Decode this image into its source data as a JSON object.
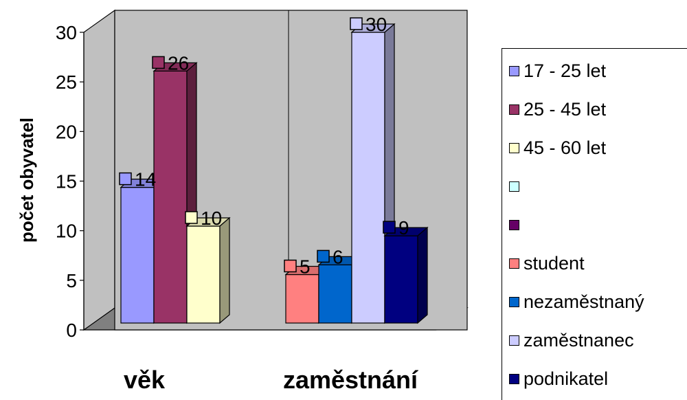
{
  "chart_data": {
    "type": "bar",
    "ylabel": "počet obyvatel",
    "ylim": [
      0,
      30
    ],
    "yticks": [
      "0",
      "5",
      "10",
      "15",
      "20",
      "25",
      "30"
    ],
    "categories": [
      "věk",
      "zaměstnání"
    ],
    "series": [
      {
        "name": "17 - 25 let",
        "color": "#9999ff",
        "category": "věk",
        "value": 14
      },
      {
        "name": "25 - 45 let",
        "color": "#993366",
        "category": "věk",
        "value": 26
      },
      {
        "name": "45 - 60 let",
        "color": "#ffffcc",
        "category": "věk",
        "value": 10
      },
      {
        "name": "",
        "color": "#ccffff",
        "category": "",
        "value": null
      },
      {
        "name": "",
        "color": "#660066",
        "category": "",
        "value": null
      },
      {
        "name": "student",
        "color": "#ff8080",
        "category": "zaměstnání",
        "value": 5
      },
      {
        "name": "nezaměstnaný",
        "color": "#0066cc",
        "category": "zaměstnání",
        "value": 6
      },
      {
        "name": "zaměstnanec",
        "color": "#ccccff",
        "category": "zaměstnání",
        "value": 30
      },
      {
        "name": "podnikatel",
        "color": "#000080",
        "category": "zaměstnání",
        "value": 9
      }
    ],
    "data_labels": [
      "14",
      "26",
      "10",
      "5",
      "6",
      "30",
      "9"
    ],
    "grid": false,
    "legend_position": "right"
  }
}
